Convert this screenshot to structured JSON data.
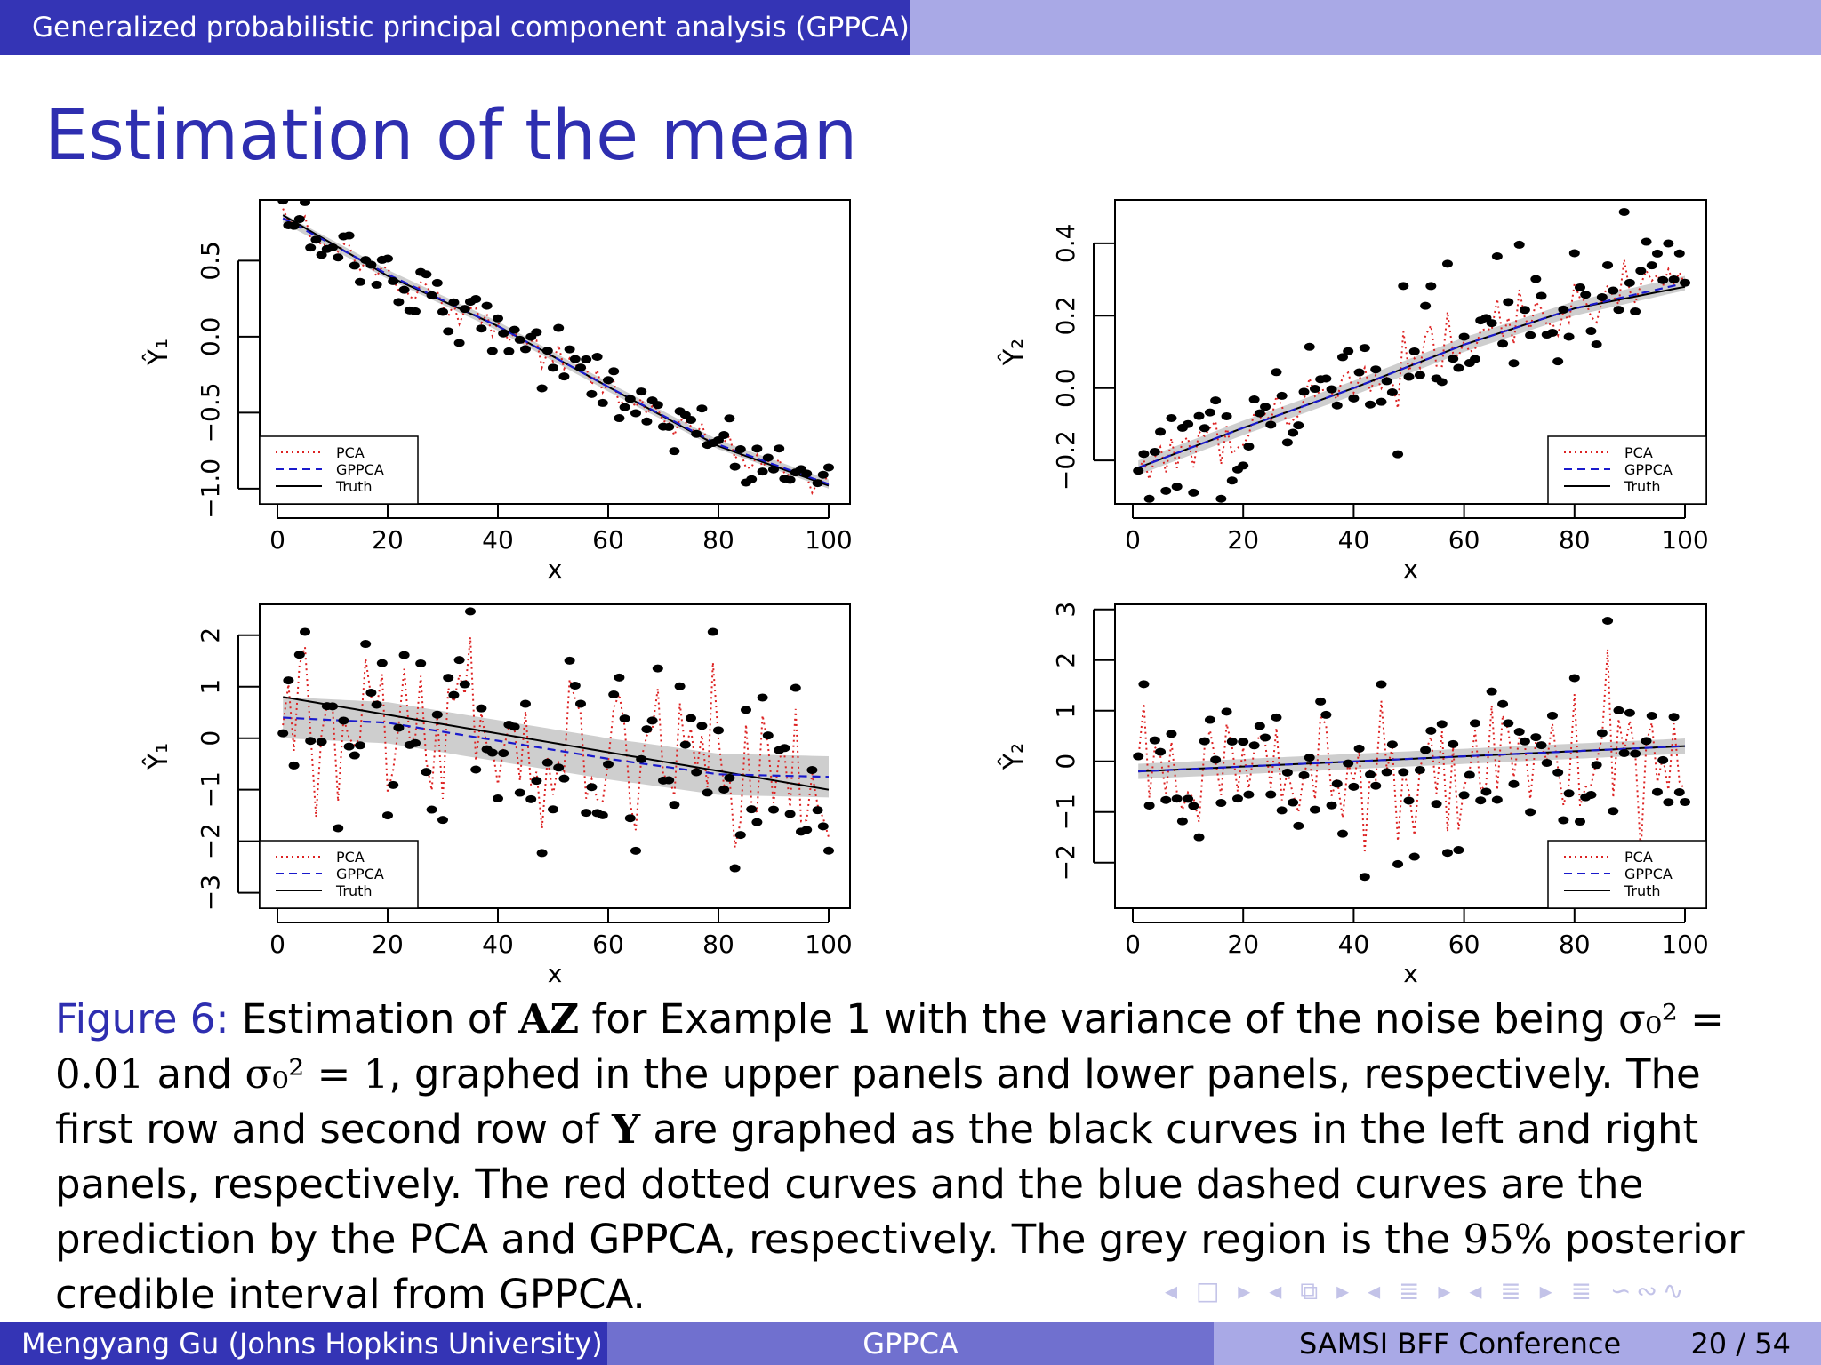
{
  "header": {
    "section": "Generalized probabilistic principal component analysis (GPPCA)"
  },
  "frame_title": "Estimation of the mean",
  "caption": {
    "label": "Figure 6:",
    "p1": " Estimation of ",
    "m1": "AZ",
    "p2": " for Example 1 with the variance of the noise being ",
    "m2": "σ₀² = 0.01",
    "p3": " and ",
    "m3": "σ₀² = 1",
    "p4": ", graphed in the upper panels and lower panels, respectively. The first row and second row of ",
    "m4": "Y",
    "p5": " are graphed as the black curves in the left and right panels, respectively. The red dotted curves and the blue dashed curves are the prediction by the PCA and GPPCA, respectively. The grey region is the ",
    "m5": "95%",
    "p6": " posterior credible interval from GPPCA."
  },
  "footer": {
    "author": "Mengyang Gu  (Johns Hopkins University)",
    "short_title": "GPPCA",
    "conference": "SAMSI BFF Conference",
    "page": "20 / 54"
  },
  "nav_symbols": "◂ □ ▸  ◂ ⧉ ▸  ◂ ≣ ▸  ◂ ≣ ▸  ≣  ∽∾∿",
  "colors": {
    "beamer_dark": "#3434b5",
    "beamer_mid": "#7070cf",
    "beamer_light": "#a9a9e6",
    "pca": "#dd2222",
    "gppca": "#1a1acc",
    "truth": "#000000",
    "band": "#bdbdbd"
  },
  "chart_data": [
    {
      "type": "scatter",
      "panel": "top-left",
      "xlabel": "x",
      "ylabel": "Ŷ₁",
      "xlim": [
        0,
        100
      ],
      "ylim": [
        -1.1,
        0.9
      ],
      "xticks": [
        0,
        20,
        40,
        60,
        80,
        100
      ],
      "yticks": [
        -1.0,
        -0.5,
        0.0,
        0.5
      ],
      "ytick_labels": [
        "−1.0",
        "−0.5",
        "0.0",
        "0.5"
      ],
      "legend": {
        "placement": "bottom-left",
        "entries": [
          "PCA",
          "GPPCA",
          "Truth"
        ]
      },
      "truth": {
        "x": [
          1,
          20,
          40,
          60,
          80,
          100
        ],
        "y": [
          0.8,
          0.4,
          0.07,
          -0.33,
          -0.72,
          -0.98
        ]
      },
      "gppca": {
        "x": [
          1,
          20,
          40,
          60,
          80,
          100
        ],
        "y": [
          0.78,
          0.41,
          0.07,
          -0.33,
          -0.71,
          -0.97
        ]
      },
      "band_halfwidth": 0.03,
      "noise_sd": 0.1,
      "n_points": 100
    },
    {
      "type": "scatter",
      "panel": "top-right",
      "xlabel": "x",
      "ylabel": "Ŷ₂",
      "xlim": [
        0,
        100
      ],
      "ylim": [
        -0.32,
        0.52
      ],
      "xticks": [
        0,
        20,
        40,
        60,
        80,
        100
      ],
      "yticks": [
        -0.2,
        0.0,
        0.2,
        0.4
      ],
      "ytick_labels": [
        "−0.2",
        "0.0",
        "0.2",
        "0.4"
      ],
      "legend": {
        "placement": "bottom-right",
        "entries": [
          "PCA",
          "GPPCA",
          "Truth"
        ]
      },
      "truth": {
        "x": [
          1,
          20,
          40,
          60,
          80,
          100
        ],
        "y": [
          -0.22,
          -0.11,
          0.0,
          0.12,
          0.22,
          0.28
        ]
      },
      "gppca": {
        "x": [
          1,
          20,
          40,
          60,
          80,
          100
        ],
        "y": [
          -0.22,
          -0.11,
          0.0,
          0.12,
          0.22,
          0.29
        ]
      },
      "band_halfwidth": 0.02,
      "noise_sd": 0.1,
      "n_points": 100
    },
    {
      "type": "scatter",
      "panel": "bottom-left",
      "xlabel": "x",
      "ylabel": "Ŷ₁",
      "xlim": [
        0,
        100
      ],
      "ylim": [
        -3.3,
        2.6
      ],
      "xticks": [
        0,
        20,
        40,
        60,
        80,
        100
      ],
      "yticks": [
        -3,
        -2,
        -1,
        0,
        1,
        2
      ],
      "ytick_labels": [
        "−3",
        "−2",
        "−1",
        "0",
        "1",
        "2"
      ],
      "legend": {
        "placement": "bottom-left",
        "entries": [
          "PCA",
          "GPPCA",
          "Truth"
        ]
      },
      "truth": {
        "x": [
          1,
          100
        ],
        "y": [
          0.8,
          -1.0
        ]
      },
      "gppca": {
        "x": [
          1,
          20,
          40,
          60,
          80,
          100
        ],
        "y": [
          0.4,
          0.3,
          -0.05,
          -0.4,
          -0.7,
          -0.75
        ]
      },
      "band_halfwidth": 0.4,
      "noise_sd": 1.0,
      "n_points": 100
    },
    {
      "type": "scatter",
      "panel": "bottom-right",
      "xlabel": "x",
      "ylabel": "Ŷ₂",
      "xlim": [
        0,
        100
      ],
      "ylim": [
        -2.9,
        3.1
      ],
      "xticks": [
        0,
        20,
        40,
        60,
        80,
        100
      ],
      "yticks": [
        -2,
        -1,
        0,
        1,
        2,
        3
      ],
      "ytick_labels": [
        "−2",
        "−1",
        "0",
        "1",
        "2",
        "3"
      ],
      "legend": {
        "placement": "bottom-right",
        "entries": [
          "PCA",
          "GPPCA",
          "Truth"
        ]
      },
      "truth": {
        "x": [
          1,
          100
        ],
        "y": [
          -0.2,
          0.3
        ]
      },
      "gppca": {
        "x": [
          1,
          100
        ],
        "y": [
          -0.2,
          0.3
        ]
      },
      "band_halfwidth": 0.15,
      "noise_sd": 1.0,
      "n_points": 100
    }
  ]
}
